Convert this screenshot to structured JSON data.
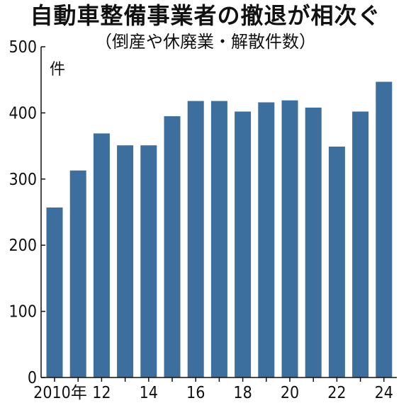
{
  "title": "自動車整備事業者の撤退が相次ぐ",
  "subtitle": "（倒産や休廃業・解散件数）",
  "colors": {
    "bar": "#3d6f9e",
    "axis": "#111111"
  },
  "chart_data": {
    "type": "bar",
    "title": "自動車整備事業者の撤退が相次ぐ",
    "subtitle": "（倒産や休廃業・解散件数）",
    "unit": "件",
    "categories": [
      "2010",
      "2011",
      "2012",
      "2013",
      "2014",
      "2015",
      "2016",
      "2017",
      "2018",
      "2019",
      "2020",
      "2021",
      "2022",
      "2023",
      "2024"
    ],
    "x_tick_labels": [
      "2010年",
      "12",
      "14",
      "16",
      "18",
      "20",
      "22",
      "24"
    ],
    "values": [
      257,
      313,
      369,
      351,
      351,
      395,
      418,
      418,
      402,
      416,
      419,
      408,
      349,
      402,
      447
    ],
    "ylim": [
      0,
      500
    ],
    "yticks": [
      0,
      100,
      200,
      300,
      400,
      500
    ],
    "grid": false,
    "legend": false
  }
}
